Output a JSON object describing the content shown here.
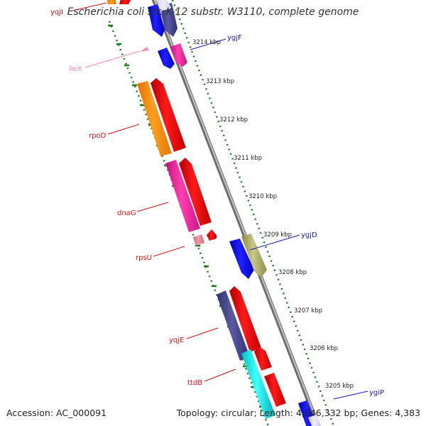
{
  "title": "Escherichia coli str. K-12 substr. W3110, complete genome",
  "accession": "Accession: AC_000091",
  "summary": "Topology: circular; Length: 4,646,332 bp; Genes: 4,383",
  "colors": {
    "backbone": "#8c8c8c",
    "ruler_ticks": "#1b7a1b",
    "minus_strand_label": "#d01010",
    "plus_strand_label": "#1a1ab0",
    "ileX_label": "#f080b0"
  },
  "ruler": {
    "unit": "kbp",
    "labels": [
      "3214 kbp",
      "3213 kbp",
      "3212 kbp",
      "3211 kbp",
      "3210 kbp",
      "3209 kbp",
      "3208 kbp",
      "3207 kbp",
      "3206 kbp",
      "3205 kbp"
    ]
  },
  "gene_labels": {
    "minus": [
      "yqjI",
      "ileX",
      "rpoD",
      "dnaG",
      "rpsU",
      "yqjE",
      "ttdB"
    ],
    "plus": [
      "ygjF",
      "ygjD",
      "ygiP"
    ]
  }
}
